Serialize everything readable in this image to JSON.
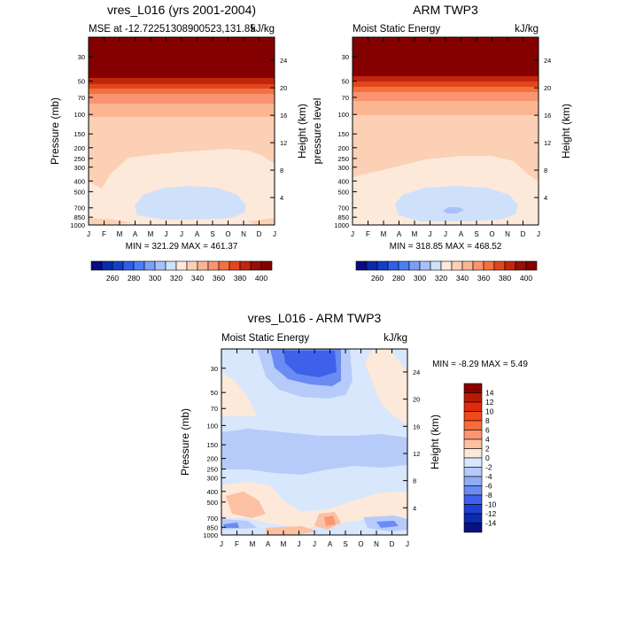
{
  "chart_data": [
    {
      "type": "heatmap",
      "title": "vres_L016 (yrs 2001-2004)",
      "left_string": "MSE at -12.72251308900523,131.85",
      "right_string": "kJ/kg",
      "ylabel": "Pressure (mb)",
      "ylabel_right": "Height (km)",
      "x_ticks": [
        "J",
        "F",
        "M",
        "A",
        "M",
        "J",
        "J",
        "A",
        "S",
        "O",
        "N",
        "D",
        "J"
      ],
      "y_ticks": [
        "30",
        "50",
        "70",
        "100",
        "150",
        "200",
        "250",
        "300",
        "400",
        "500",
        "700",
        "850",
        "1000"
      ],
      "y_right_ticks": [
        "24",
        "20",
        "16",
        "12",
        "8",
        "4"
      ],
      "stats": "MIN = 321.29 MAX = 461.37"
    },
    {
      "type": "heatmap",
      "title": "ARM TWP3",
      "left_string": "Moist Static Energy",
      "right_string": "kJ/kg",
      "ylabel": "pressure level",
      "ylabel_right": "Height (km)",
      "x_ticks": [
        "J",
        "F",
        "M",
        "A",
        "M",
        "J",
        "J",
        "A",
        "S",
        "O",
        "N",
        "D",
        "J"
      ],
      "y_ticks": [
        "30",
        "50",
        "70",
        "100",
        "150",
        "200",
        "250",
        "300",
        "400",
        "500",
        "700",
        "850",
        "1000"
      ],
      "y_right_ticks": [
        "24",
        "20",
        "16",
        "12",
        "8",
        "4"
      ],
      "stats": "MIN = 318.85 MAX = 468.52"
    },
    {
      "type": "heatmap",
      "title": "vres_L016 - ARM TWP3",
      "left_string": "Moist Static Energy",
      "right_string": "kJ/kg",
      "ylabel": "Pressure (mb)",
      "ylabel_right": "Height (km)",
      "x_ticks": [
        "J",
        "F",
        "M",
        "A",
        "M",
        "J",
        "J",
        "A",
        "S",
        "O",
        "N",
        "D",
        "J"
      ],
      "y_ticks": [
        "30",
        "50",
        "70",
        "100",
        "150",
        "200",
        "250",
        "300",
        "400",
        "500",
        "700",
        "850",
        "1000"
      ],
      "y_right_ticks": [
        "24",
        "20",
        "16",
        "12",
        "8",
        "4"
      ],
      "stats": "MIN = -8.29 MAX =   5.49"
    }
  ],
  "colorbar_top": {
    "labels": [
      "260",
      "280",
      "300",
      "320",
      "340",
      "360",
      "380",
      "400"
    ],
    "colors": [
      "#0a0a82",
      "#0b2ba8",
      "#1040c8",
      "#2e5fe6",
      "#4c7df5",
      "#7b9ff6",
      "#a8c0fa",
      "#cfe0fb",
      "#fde9da",
      "#fcd0b5",
      "#fcb593",
      "#fa9470",
      "#f4703f",
      "#e2461e",
      "#c3250d",
      "#971005",
      "#840000"
    ]
  },
  "colorbar_bottom": {
    "labels": [
      "14",
      "12",
      "10",
      "8",
      "6",
      "4",
      "2",
      "0",
      "-2",
      "-4",
      "-6",
      "-8",
      "-10",
      "-12",
      "-14"
    ],
    "colors": [
      "#8a0000",
      "#ba1a05",
      "#df2b0c",
      "#f2481c",
      "#f86c3a",
      "#fb9670",
      "#fdc0a3",
      "#fde9da",
      "#d8e7fb",
      "#b6cbfa",
      "#91acf6",
      "#6a8cf2",
      "#3f60eb",
      "#1f3fd4",
      "#0a2ab2",
      "#0a1080"
    ]
  }
}
